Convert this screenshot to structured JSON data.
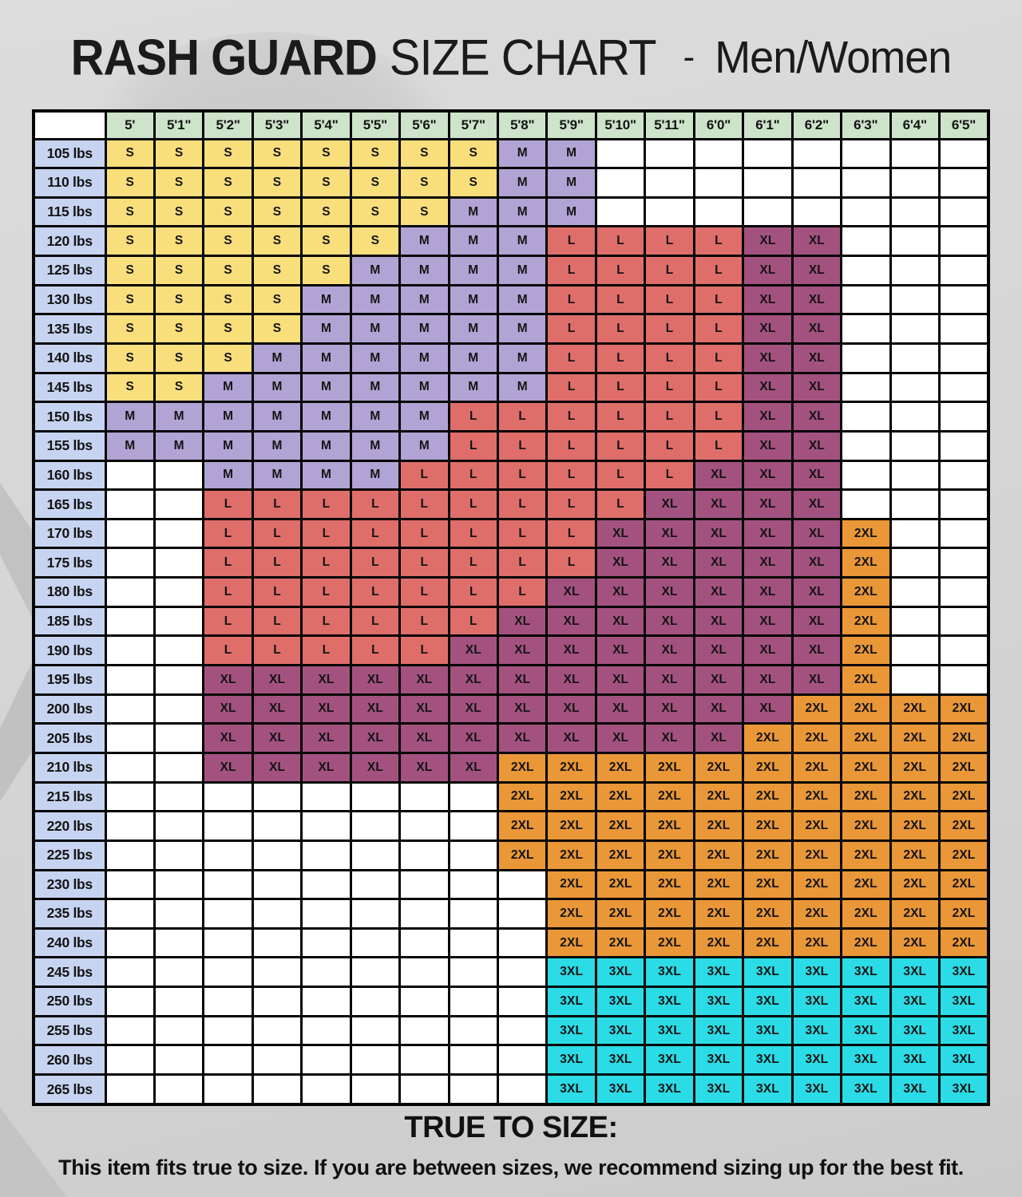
{
  "title": {
    "primary": "RASH GUARD",
    "secondary": "SIZE CHART",
    "separator": "-",
    "suffix": "Men/Women"
  },
  "footer": {
    "heading": "TRUE TO SIZE:",
    "note": "This item fits true to size. If you are between sizes, we recommend sizing up for the best fit."
  },
  "colors": {
    "S": "#f9df7c",
    "M": "#b1a4d4",
    "L": "#df6e6b",
    "XL": "#a35280",
    "2XL": "#ea9737",
    "3XL": "#2bdce6",
    "header_bg": "#cde3ca",
    "weight_bg": "#c7d4f1",
    "empty_bg": "#ffffff",
    "border": "#050505",
    "cell_text": "#141414"
  },
  "chart_data": {
    "type": "heatmap",
    "title": "RASH GUARD SIZE CHART - Men/Women",
    "x_axis": "height",
    "y_axis": "weight",
    "legend_values": [
      "S",
      "M",
      "L",
      "XL",
      "2XL",
      "3XL"
    ],
    "columns": [
      "5'",
      "5'1\"",
      "5'2\"",
      "5'3\"",
      "5'4\"",
      "5'5\"",
      "5'6\"",
      "5'7\"",
      "5'8\"",
      "5'9\"",
      "5'10\"",
      "5'11\"",
      "6'0\"",
      "6'1\"",
      "6'2\"",
      "6'3\"",
      "6'4\"",
      "6'5\""
    ],
    "rows": [
      {
        "label": "105 lbs",
        "cells": [
          "S",
          "S",
          "S",
          "S",
          "S",
          "S",
          "S",
          "S",
          "M",
          "M",
          "",
          "",
          "",
          "",
          "",
          "",
          "",
          ""
        ]
      },
      {
        "label": "110 lbs",
        "cells": [
          "S",
          "S",
          "S",
          "S",
          "S",
          "S",
          "S",
          "S",
          "M",
          "M",
          "",
          "",
          "",
          "",
          "",
          "",
          "",
          ""
        ]
      },
      {
        "label": "115 lbs",
        "cells": [
          "S",
          "S",
          "S",
          "S",
          "S",
          "S",
          "S",
          "M",
          "M",
          "M",
          "",
          "",
          "",
          "",
          "",
          "",
          "",
          ""
        ]
      },
      {
        "label": "120 lbs",
        "cells": [
          "S",
          "S",
          "S",
          "S",
          "S",
          "S",
          "M",
          "M",
          "M",
          "L",
          "L",
          "L",
          "L",
          "XL",
          "XL",
          "",
          "",
          ""
        ]
      },
      {
        "label": "125 lbs",
        "cells": [
          "S",
          "S",
          "S",
          "S",
          "S",
          "M",
          "M",
          "M",
          "M",
          "L",
          "L",
          "L",
          "L",
          "XL",
          "XL",
          "",
          "",
          ""
        ]
      },
      {
        "label": "130 lbs",
        "cells": [
          "S",
          "S",
          "S",
          "S",
          "M",
          "M",
          "M",
          "M",
          "M",
          "L",
          "L",
          "L",
          "L",
          "XL",
          "XL",
          "",
          "",
          ""
        ]
      },
      {
        "label": "135 lbs",
        "cells": [
          "S",
          "S",
          "S",
          "S",
          "M",
          "M",
          "M",
          "M",
          "M",
          "L",
          "L",
          "L",
          "L",
          "XL",
          "XL",
          "",
          "",
          ""
        ]
      },
      {
        "label": "140 lbs",
        "cells": [
          "S",
          "S",
          "S",
          "M",
          "M",
          "M",
          "M",
          "M",
          "M",
          "L",
          "L",
          "L",
          "L",
          "XL",
          "XL",
          "",
          "",
          ""
        ]
      },
      {
        "label": "145 lbs",
        "cells": [
          "S",
          "S",
          "M",
          "M",
          "M",
          "M",
          "M",
          "M",
          "M",
          "L",
          "L",
          "L",
          "L",
          "XL",
          "XL",
          "",
          "",
          ""
        ]
      },
      {
        "label": "150 lbs",
        "cells": [
          "M",
          "M",
          "M",
          "M",
          "M",
          "M",
          "M",
          "L",
          "L",
          "L",
          "L",
          "L",
          "L",
          "XL",
          "XL",
          "",
          "",
          ""
        ]
      },
      {
        "label": "155 lbs",
        "cells": [
          "M",
          "M",
          "M",
          "M",
          "M",
          "M",
          "M",
          "L",
          "L",
          "L",
          "L",
          "L",
          "L",
          "XL",
          "XL",
          "",
          "",
          ""
        ]
      },
      {
        "label": "160 lbs",
        "cells": [
          "",
          "",
          "M",
          "M",
          "M",
          "M",
          "L",
          "L",
          "L",
          "L",
          "L",
          "L",
          "XL",
          "XL",
          "XL",
          "",
          "",
          ""
        ]
      },
      {
        "label": "165 lbs",
        "cells": [
          "",
          "",
          "L",
          "L",
          "L",
          "L",
          "L",
          "L",
          "L",
          "L",
          "L",
          "XL",
          "XL",
          "XL",
          "XL",
          "",
          "",
          ""
        ]
      },
      {
        "label": "170 lbs",
        "cells": [
          "",
          "",
          "L",
          "L",
          "L",
          "L",
          "L",
          "L",
          "L",
          "L",
          "XL",
          "XL",
          "XL",
          "XL",
          "XL",
          "2XL",
          "",
          ""
        ]
      },
      {
        "label": "175 lbs",
        "cells": [
          "",
          "",
          "L",
          "L",
          "L",
          "L",
          "L",
          "L",
          "L",
          "L",
          "XL",
          "XL",
          "XL",
          "XL",
          "XL",
          "2XL",
          "",
          ""
        ]
      },
      {
        "label": "180 lbs",
        "cells": [
          "",
          "",
          "L",
          "L",
          "L",
          "L",
          "L",
          "L",
          "L",
          "XL",
          "XL",
          "XL",
          "XL",
          "XL",
          "XL",
          "2XL",
          "",
          ""
        ]
      },
      {
        "label": "185 lbs",
        "cells": [
          "",
          "",
          "L",
          "L",
          "L",
          "L",
          "L",
          "L",
          "XL",
          "XL",
          "XL",
          "XL",
          "XL",
          "XL",
          "XL",
          "2XL",
          "",
          ""
        ]
      },
      {
        "label": "190 lbs",
        "cells": [
          "",
          "",
          "L",
          "L",
          "L",
          "L",
          "L",
          "XL",
          "XL",
          "XL",
          "XL",
          "XL",
          "XL",
          "XL",
          "XL",
          "2XL",
          "",
          ""
        ]
      },
      {
        "label": "195 lbs",
        "cells": [
          "",
          "",
          "XL",
          "XL",
          "XL",
          "XL",
          "XL",
          "XL",
          "XL",
          "XL",
          "XL",
          "XL",
          "XL",
          "XL",
          "XL",
          "2XL",
          "",
          ""
        ]
      },
      {
        "label": "200 lbs",
        "cells": [
          "",
          "",
          "XL",
          "XL",
          "XL",
          "XL",
          "XL",
          "XL",
          "XL",
          "XL",
          "XL",
          "XL",
          "XL",
          "XL",
          "2XL",
          "2XL",
          "2XL",
          "2XL"
        ]
      },
      {
        "label": "205 lbs",
        "cells": [
          "",
          "",
          "XL",
          "XL",
          "XL",
          "XL",
          "XL",
          "XL",
          "XL",
          "XL",
          "XL",
          "XL",
          "XL",
          "2XL",
          "2XL",
          "2XL",
          "2XL",
          "2XL"
        ]
      },
      {
        "label": "210 lbs",
        "cells": [
          "",
          "",
          "XL",
          "XL",
          "XL",
          "XL",
          "XL",
          "XL",
          "2XL",
          "2XL",
          "2XL",
          "2XL",
          "2XL",
          "2XL",
          "2XL",
          "2XL",
          "2XL",
          "2XL"
        ]
      },
      {
        "label": "215 lbs",
        "cells": [
          "",
          "",
          "",
          "",
          "",
          "",
          "",
          "",
          "2XL",
          "2XL",
          "2XL",
          "2XL",
          "2XL",
          "2XL",
          "2XL",
          "2XL",
          "2XL",
          "2XL"
        ]
      },
      {
        "label": "220 lbs",
        "cells": [
          "",
          "",
          "",
          "",
          "",
          "",
          "",
          "",
          "2XL",
          "2XL",
          "2XL",
          "2XL",
          "2XL",
          "2XL",
          "2XL",
          "2XL",
          "2XL",
          "2XL"
        ]
      },
      {
        "label": "225 lbs",
        "cells": [
          "",
          "",
          "",
          "",
          "",
          "",
          "",
          "",
          "2XL",
          "2XL",
          "2XL",
          "2XL",
          "2XL",
          "2XL",
          "2XL",
          "2XL",
          "2XL",
          "2XL"
        ]
      },
      {
        "label": "230 lbs",
        "cells": [
          "",
          "",
          "",
          "",
          "",
          "",
          "",
          "",
          "",
          "2XL",
          "2XL",
          "2XL",
          "2XL",
          "2XL",
          "2XL",
          "2XL",
          "2XL",
          "2XL"
        ]
      },
      {
        "label": "235 lbs",
        "cells": [
          "",
          "",
          "",
          "",
          "",
          "",
          "",
          "",
          "",
          "2XL",
          "2XL",
          "2XL",
          "2XL",
          "2XL",
          "2XL",
          "2XL",
          "2XL",
          "2XL"
        ]
      },
      {
        "label": "240 lbs",
        "cells": [
          "",
          "",
          "",
          "",
          "",
          "",
          "",
          "",
          "",
          "2XL",
          "2XL",
          "2XL",
          "2XL",
          "2XL",
          "2XL",
          "2XL",
          "2XL",
          "2XL"
        ]
      },
      {
        "label": "245 lbs",
        "cells": [
          "",
          "",
          "",
          "",
          "",
          "",
          "",
          "",
          "",
          "3XL",
          "3XL",
          "3XL",
          "3XL",
          "3XL",
          "3XL",
          "3XL",
          "3XL",
          "3XL"
        ]
      },
      {
        "label": "250 lbs",
        "cells": [
          "",
          "",
          "",
          "",
          "",
          "",
          "",
          "",
          "",
          "3XL",
          "3XL",
          "3XL",
          "3XL",
          "3XL",
          "3XL",
          "3XL",
          "3XL",
          "3XL"
        ]
      },
      {
        "label": "255 lbs",
        "cells": [
          "",
          "",
          "",
          "",
          "",
          "",
          "",
          "",
          "",
          "3XL",
          "3XL",
          "3XL",
          "3XL",
          "3XL",
          "3XL",
          "3XL",
          "3XL",
          "3XL"
        ]
      },
      {
        "label": "260 lbs",
        "cells": [
          "",
          "",
          "",
          "",
          "",
          "",
          "",
          "",
          "",
          "3XL",
          "3XL",
          "3XL",
          "3XL",
          "3XL",
          "3XL",
          "3XL",
          "3XL",
          "3XL"
        ]
      },
      {
        "label": "265 lbs",
        "cells": [
          "",
          "",
          "",
          "",
          "",
          "",
          "",
          "",
          "",
          "3XL",
          "3XL",
          "3XL",
          "3XL",
          "3XL",
          "3XL",
          "3XL",
          "3XL",
          "3XL"
        ]
      }
    ]
  }
}
